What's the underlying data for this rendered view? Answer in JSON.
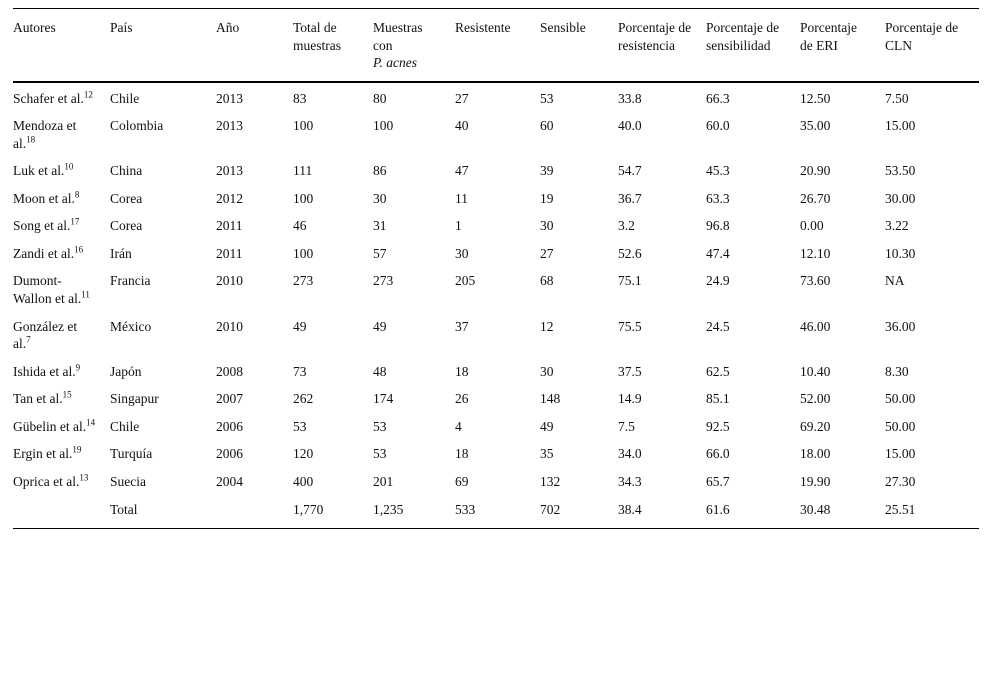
{
  "table": {
    "columns": [
      {
        "label": "Autores"
      },
      {
        "label": "País"
      },
      {
        "label": "Año"
      },
      {
        "label": "Total de muestras"
      },
      {
        "label": "Muestras con",
        "italic": "P. acnes"
      },
      {
        "label": "Resistente"
      },
      {
        "label": "Sensible"
      },
      {
        "label": "Porcentaje de resistencia"
      },
      {
        "label": "Porcentaje de sensibilidad"
      },
      {
        "label": "Porcentaje de ERI"
      },
      {
        "label": "Porcentaje de CLN"
      }
    ],
    "rows": [
      {
        "author": "Schafer et al.",
        "ref": "12",
        "cells": [
          "Chile",
          "2013",
          "83",
          "80",
          "27",
          "53",
          "33.8",
          "66.3",
          "12.50",
          "7.50"
        ]
      },
      {
        "author": "Mendoza et al.",
        "ref": "18",
        "cells": [
          "Colombia",
          "2013",
          "100",
          "100",
          "40",
          "60",
          "40.0",
          "60.0",
          "35.00",
          "15.00"
        ]
      },
      {
        "author": "Luk et al.",
        "ref": "10",
        "cells": [
          "China",
          "2013",
          "111",
          "86",
          "47",
          "39",
          "54.7",
          "45.3",
          "20.90",
          "53.50"
        ]
      },
      {
        "author": "Moon et al.",
        "ref": "8",
        "cells": [
          "Corea",
          "2012",
          "100",
          "30",
          "11",
          "19",
          "36.7",
          "63.3",
          "26.70",
          "30.00"
        ]
      },
      {
        "author": "Song et al.",
        "ref": "17",
        "cells": [
          "Corea",
          "2011",
          "46",
          "31",
          "1",
          "30",
          "3.2",
          "96.8",
          "0.00",
          "3.22"
        ]
      },
      {
        "author": "Zandi et al.",
        "ref": "16",
        "cells": [
          "Irán",
          "2011",
          "100",
          "57",
          "30",
          "27",
          "52.6",
          "47.4",
          "12.10",
          "10.30"
        ]
      },
      {
        "author": "Dumont-Wallon et al.",
        "ref": "11",
        "cells": [
          "Francia",
          "2010",
          "273",
          "273",
          "205",
          "68",
          "75.1",
          "24.9",
          "73.60",
          "NA"
        ]
      },
      {
        "author": "González et al.",
        "ref": "7",
        "cells": [
          "México",
          "2010",
          "49",
          "49",
          "37",
          "12",
          "75.5",
          "24.5",
          "46.00",
          "36.00"
        ]
      },
      {
        "author": "Ishida et al.",
        "ref": "9",
        "cells": [
          "Japón",
          "2008",
          "73",
          "48",
          "18",
          "30",
          "37.5",
          "62.5",
          "10.40",
          "8.30"
        ]
      },
      {
        "author": "Tan et al.",
        "ref": "15",
        "cells": [
          "Singapur",
          "2007",
          "262",
          "174",
          "26",
          "148",
          "14.9",
          "85.1",
          "52.00",
          "50.00"
        ]
      },
      {
        "author": "Gübelin et al.",
        "ref": "14",
        "cells": [
          "Chile",
          "2006",
          "53",
          "53",
          "4",
          "49",
          "7.5",
          "92.5",
          "69.20",
          "50.00"
        ]
      },
      {
        "author": "Ergin et al.",
        "ref": "19",
        "cells": [
          "Turquía",
          "2006",
          "120",
          "53",
          "18",
          "35",
          "34.0",
          "66.0",
          "18.00",
          "15.00"
        ]
      },
      {
        "author": "Oprica et al.",
        "ref": "13",
        "cells": [
          "Suecia",
          "2004",
          "400",
          "201",
          "69",
          "132",
          "34.3",
          "65.7",
          "19.90",
          "27.30"
        ]
      },
      {
        "author": "",
        "ref": "",
        "total": true,
        "cells": [
          "Total",
          "",
          "1,770",
          "1,235",
          "533",
          "702",
          "38.4",
          "61.6",
          "30.48",
          "25.51"
        ]
      }
    ]
  }
}
